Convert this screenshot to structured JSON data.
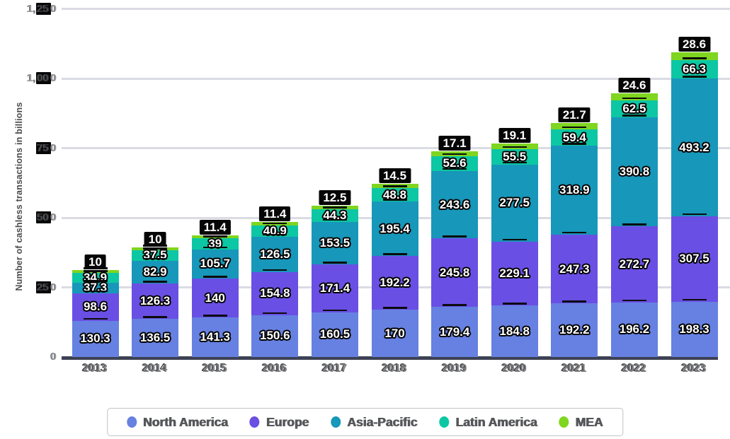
{
  "chart_data": {
    "type": "bar",
    "stacked": true,
    "title": "",
    "ylabel": "Number of cashless transactions in billions",
    "xlabel": "",
    "categories": [
      "2013",
      "2014",
      "2015",
      "2016",
      "2017",
      "2018",
      "2019",
      "2020",
      "2021",
      "2022",
      "2023"
    ],
    "series": [
      {
        "name": "North America",
        "color": "#6681e1",
        "values": [
          130.3,
          136.5,
          141.3,
          150.6,
          160.5,
          170,
          179.4,
          184.8,
          192.2,
          196.2,
          198.3
        ]
      },
      {
        "name": "Europe",
        "color": "#6a4fe4",
        "values": [
          98.6,
          126.3,
          140,
          154.8,
          171.4,
          192.2,
          245.8,
          229.1,
          247.3,
          272.7,
          307.5
        ]
      },
      {
        "name": "Asia-Pacific",
        "color": "#1797b9",
        "values": [
          37.3,
          82.9,
          105.7,
          126.5,
          153.5,
          195.4,
          243.6,
          277.5,
          318.9,
          390.8,
          493.2
        ]
      },
      {
        "name": "Latin America",
        "color": "#0cc7a3",
        "values": [
          34.9,
          37.5,
          39,
          40.9,
          44.3,
          48.8,
          52.6,
          55.5,
          59.4,
          62.5,
          66.3
        ]
      },
      {
        "name": "MEA",
        "color": "#7fd51f",
        "values": [
          10,
          10,
          11.4,
          11.4,
          12.5,
          14.5,
          17.1,
          19.1,
          21.7,
          24.6,
          28.6
        ]
      }
    ],
    "ylim": [
      0,
      1250
    ],
    "y_ticks": [
      "0",
      "250",
      "500",
      "750",
      "1,000",
      "1,250"
    ],
    "grid": true,
    "legend_position": "bottom"
  },
  "axis_artifacts": {
    "y_tick_display": [
      {
        "pre": "0",
        "boxed": "",
        "post": ""
      },
      {
        "pre": "",
        "boxed": "25",
        "post": "0"
      },
      {
        "pre": "",
        "boxed": "50",
        "post": "0"
      },
      {
        "pre": "",
        "boxed": "75",
        "post": "0"
      },
      {
        "pre": "1,",
        "boxed": "00",
        "post": "0"
      },
      {
        "pre": "1,",
        "boxed": "25",
        "post": "0"
      }
    ]
  },
  "colors": {
    "gridline": "#dadbe3",
    "axis_baseline": "#3c4153",
    "label_pill_background": "#060606",
    "value_label_text": "#ffffff"
  }
}
